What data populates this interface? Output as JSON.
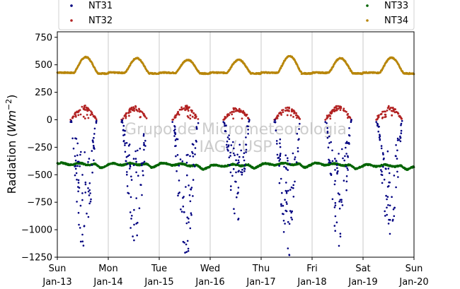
{
  "chart_data": {
    "type": "scatter",
    "title": "",
    "xlabel": "",
    "ylabel_prefix": "Radiation (",
    "ylabel_unit": "Wm",
    "ylabel_exp": "−2",
    "ylabel_suffix": ")",
    "ylim": [
      -1250,
      800
    ],
    "yticks": [
      750,
      500,
      250,
      0,
      -250,
      -500,
      -750,
      -1000,
      -1250
    ],
    "ytick_labels": [
      "750",
      "500",
      "250",
      "0",
      "−250",
      "−500",
      "−750",
      "−1000",
      "−1250"
    ],
    "xlim": [
      "2019-01-13",
      "2019-01-20"
    ],
    "xticks": [
      {
        "day": "Sun",
        "date": "Jan-13"
      },
      {
        "day": "Mon",
        "date": "Jan-14"
      },
      {
        "day": "Tue",
        "date": "Jan-15"
      },
      {
        "day": "Wed",
        "date": "Jan-16"
      },
      {
        "day": "Thu",
        "date": "Jan-17"
      },
      {
        "day": "Fri",
        "date": "Jan-18"
      },
      {
        "day": "Sat",
        "date": "Jan-19"
      },
      {
        "day": "Sun",
        "date": "Jan-20"
      }
    ],
    "grid": "vertical",
    "legend_position": "top",
    "watermark": [
      "Grupo de Micrometeorologia",
      "IAG / USP"
    ],
    "series": [
      {
        "name": "NT31",
        "color": "#000080",
        "days": [
          "2019-01-13",
          "2019-01-14",
          "2019-01-15",
          "2019-01-16",
          "2019-01-17",
          "2019-01-18",
          "2019-01-19"
        ],
        "sunrise_hour": 6.5,
        "sunset_hour": 18.5,
        "daily_min": [
          -1150,
          -1100,
          -1210,
          -910,
          -1240,
          -1150,
          -1050
        ]
      },
      {
        "name": "NT32",
        "color": "#b22222",
        "days": [
          "2019-01-13",
          "2019-01-14",
          "2019-01-15",
          "2019-01-16",
          "2019-01-17",
          "2019-01-18",
          "2019-01-19"
        ],
        "night_value": 0,
        "daily_max": [
          135,
          125,
          130,
          115,
          120,
          130,
          125
        ]
      },
      {
        "name": "NT33",
        "color": "#006400",
        "baseline_range": [
          -460,
          -390
        ],
        "values_at_midnight": [
          -400,
          -405,
          -400,
          -420,
          -405,
          -400,
          -415,
          -420
        ]
      },
      {
        "name": "NT34",
        "color": "#b8860b",
        "night_value": 430,
        "daily_max": [
          570,
          560,
          545,
          545,
          580,
          560,
          565
        ]
      }
    ]
  }
}
